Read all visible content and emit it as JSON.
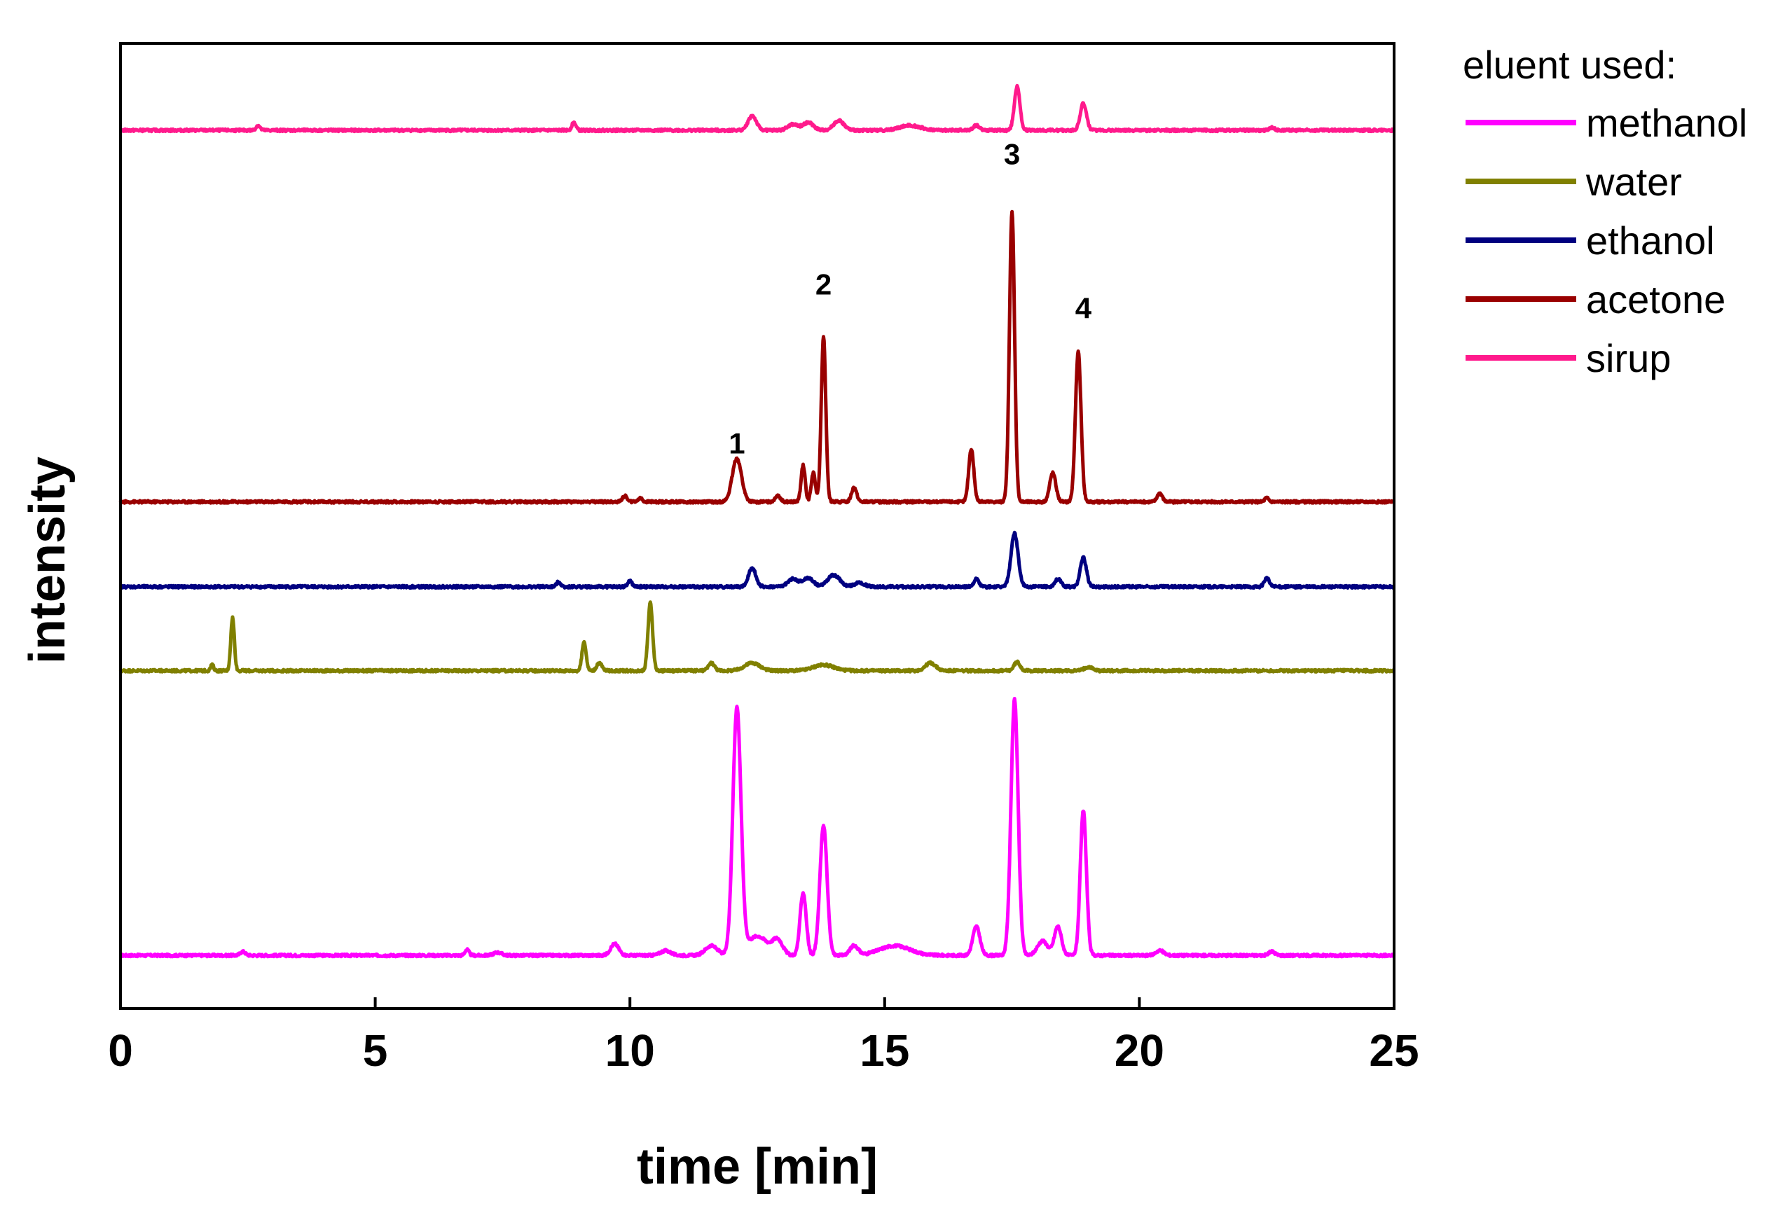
{
  "chart_data": {
    "type": "line",
    "title": "",
    "xlabel": "time [min]",
    "ylabel": "intensity",
    "xlim": [
      0,
      25
    ],
    "ylim": [
      0,
      100
    ],
    "x_ticks": [
      0,
      5,
      10,
      15,
      20,
      25
    ],
    "grid": false,
    "legend": {
      "title": "eluent used:",
      "placement": "outside-top-right",
      "entries": [
        "methanol",
        "water",
        "ethanol",
        "acetone",
        "sirup"
      ]
    },
    "peak_annotations": [
      {
        "label": "1",
        "x": 12.1,
        "y": 57.5
      },
      {
        "label": "2",
        "x": 13.8,
        "y": 74
      },
      {
        "label": "3",
        "x": 17.5,
        "y": 87.5
      },
      {
        "label": "4",
        "x": 18.9,
        "y": 71.5
      }
    ],
    "series": [
      {
        "name": "methanol",
        "color": "#ff00ff",
        "baseline": 5.5,
        "peaks": [
          [
            2.4,
            0.4,
            0.05
          ],
          [
            6.8,
            0.6,
            0.04
          ],
          [
            7.4,
            0.3,
            0.08
          ],
          [
            9.7,
            1.2,
            0.08
          ],
          [
            10.7,
            0.5,
            0.1
          ],
          [
            11.6,
            1.0,
            0.12
          ],
          [
            12.1,
            25.5,
            0.08
          ],
          [
            12.5,
            2.0,
            0.2
          ],
          [
            12.9,
            1.5,
            0.1
          ],
          [
            13.4,
            6.5,
            0.06
          ],
          [
            13.8,
            13.5,
            0.07
          ],
          [
            14.4,
            1.0,
            0.08
          ],
          [
            15.2,
            1.0,
            0.3
          ],
          [
            16.8,
            3.0,
            0.07
          ],
          [
            17.55,
            26.5,
            0.07
          ],
          [
            18.1,
            1.5,
            0.1
          ],
          [
            18.4,
            3.0,
            0.07
          ],
          [
            18.9,
            15.0,
            0.06
          ],
          [
            20.4,
            0.5,
            0.08
          ],
          [
            22.6,
            0.4,
            0.06
          ]
        ]
      },
      {
        "name": "water",
        "color": "#808000",
        "baseline": 35,
        "peaks": [
          [
            1.8,
            0.6,
            0.03
          ],
          [
            2.2,
            5.5,
            0.035
          ],
          [
            9.1,
            3.0,
            0.04
          ],
          [
            9.4,
            0.8,
            0.05
          ],
          [
            10.4,
            7.0,
            0.045
          ],
          [
            11.6,
            0.8,
            0.06
          ],
          [
            12.4,
            0.8,
            0.15
          ],
          [
            13.8,
            0.6,
            0.2
          ],
          [
            15.9,
            0.8,
            0.1
          ],
          [
            17.6,
            0.9,
            0.06
          ],
          [
            19.0,
            0.4,
            0.08
          ]
        ]
      },
      {
        "name": "ethanol",
        "color": "#000080",
        "baseline": 43.7,
        "peaks": [
          [
            8.6,
            0.5,
            0.04
          ],
          [
            10.0,
            0.6,
            0.04
          ],
          [
            12.4,
            2.0,
            0.07
          ],
          [
            13.2,
            0.8,
            0.1
          ],
          [
            13.5,
            0.9,
            0.1
          ],
          [
            14.0,
            1.2,
            0.12
          ],
          [
            14.5,
            0.4,
            0.1
          ],
          [
            16.8,
            0.8,
            0.05
          ],
          [
            17.55,
            5.5,
            0.07
          ],
          [
            18.4,
            0.8,
            0.06
          ],
          [
            18.9,
            3.0,
            0.06
          ],
          [
            22.5,
            0.9,
            0.05
          ]
        ]
      },
      {
        "name": "acetone",
        "color": "#990000",
        "baseline": 52.5,
        "peaks": [
          [
            9.9,
            0.6,
            0.05
          ],
          [
            10.2,
            0.4,
            0.04
          ],
          [
            12.1,
            4.5,
            0.09
          ],
          [
            12.9,
            0.7,
            0.05
          ],
          [
            13.4,
            3.8,
            0.04
          ],
          [
            13.6,
            3.0,
            0.04
          ],
          [
            13.8,
            17.0,
            0.045
          ],
          [
            14.4,
            1.5,
            0.05
          ],
          [
            16.7,
            5.5,
            0.05
          ],
          [
            17.5,
            30.0,
            0.05
          ],
          [
            18.3,
            3.0,
            0.06
          ],
          [
            18.8,
            15.5,
            0.055
          ],
          [
            20.4,
            0.9,
            0.05
          ],
          [
            22.5,
            0.4,
            0.04
          ]
        ]
      },
      {
        "name": "sirup",
        "color": "#ff1a8c",
        "baseline": 91,
        "peaks": [
          [
            2.7,
            0.5,
            0.04
          ],
          [
            8.9,
            0.8,
            0.04
          ],
          [
            12.4,
            1.5,
            0.08
          ],
          [
            13.2,
            0.6,
            0.1
          ],
          [
            13.5,
            0.8,
            0.1
          ],
          [
            14.1,
            1.0,
            0.1
          ],
          [
            15.5,
            0.5,
            0.2
          ],
          [
            16.8,
            0.5,
            0.06
          ],
          [
            17.6,
            4.5,
            0.055
          ],
          [
            18.9,
            2.8,
            0.06
          ],
          [
            22.6,
            0.3,
            0.05
          ]
        ]
      }
    ]
  }
}
